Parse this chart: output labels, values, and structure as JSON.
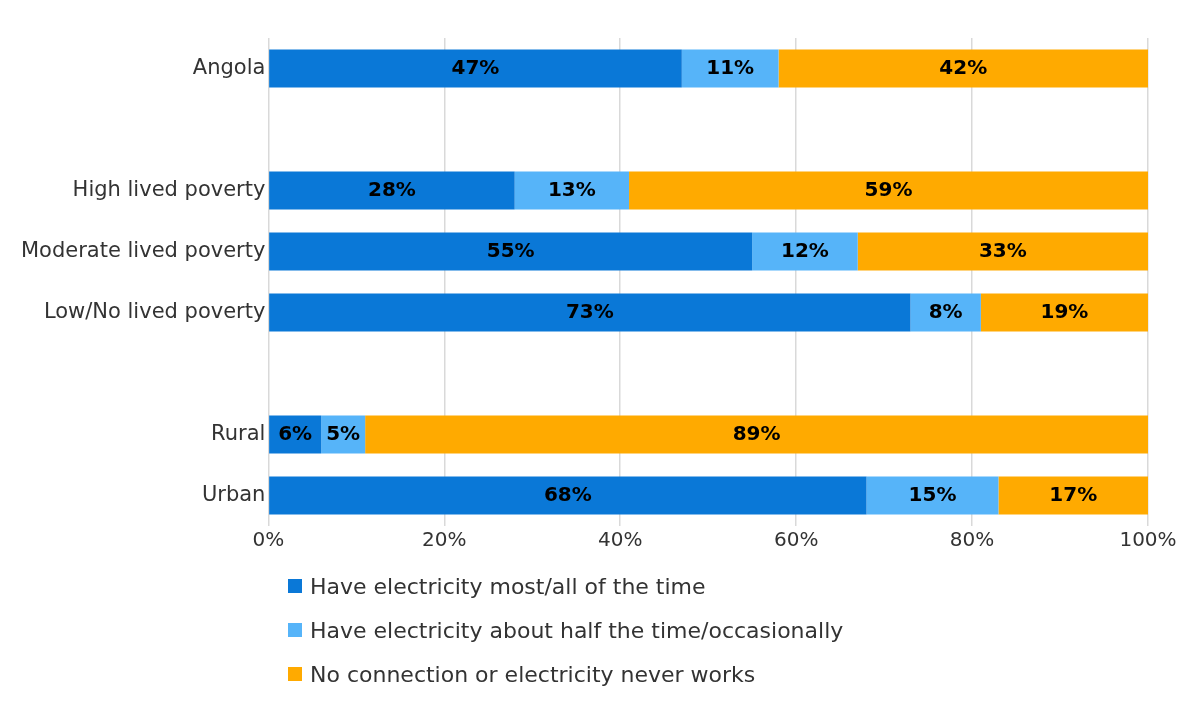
{
  "chart_data": {
    "type": "bar",
    "orientation": "horizontal",
    "stacked": true,
    "categories": [
      "Angola",
      null,
      "High lived poverty",
      "Moderate lived poverty",
      "Low/No lived poverty",
      null,
      "Rural",
      "Urban"
    ],
    "series": [
      {
        "name": "Have electricity most/all of the time",
        "color": "#0a78d7",
        "values": [
          47,
          null,
          28,
          55,
          73,
          null,
          6,
          68
        ],
        "value_labels": [
          "47%",
          null,
          "28%",
          "55%",
          "73%",
          null,
          "6%",
          "68%"
        ]
      },
      {
        "name": "Have electricity about half the time/occasionally",
        "color": "#56b4f9",
        "values": [
          11,
          null,
          13,
          12,
          8,
          null,
          5,
          15
        ],
        "value_labels": [
          "11%",
          null,
          "13%",
          "12%",
          "8%",
          null,
          "5%",
          "15%"
        ]
      },
      {
        "name": "No connection or electricity never works",
        "color": "#ffaa00",
        "values": [
          42,
          null,
          59,
          33,
          19,
          null,
          89,
          17
        ],
        "value_labels": [
          "42%",
          null,
          "59%",
          "33%",
          "19%",
          null,
          "89%",
          "17%"
        ]
      }
    ],
    "xlim": [
      0,
      100
    ],
    "xticks": [
      {
        "value": 0,
        "label": "0%"
      },
      {
        "value": 20,
        "label": "20%"
      },
      {
        "value": 40,
        "label": "40%"
      },
      {
        "value": 60,
        "label": "60%"
      },
      {
        "value": 80,
        "label": "80%"
      },
      {
        "value": 100,
        "label": "100%"
      }
    ],
    "grid": "x",
    "legend": "bottom"
  }
}
